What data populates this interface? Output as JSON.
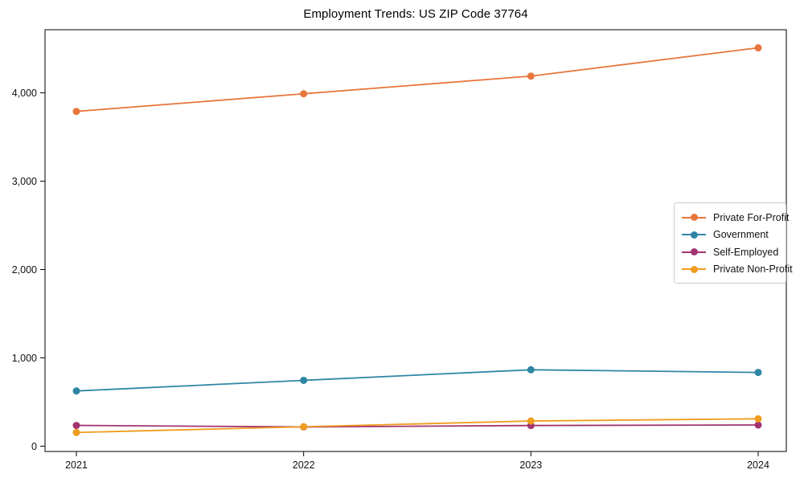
{
  "chart_data": {
    "type": "line",
    "title": "Employment Trends: US ZIP Code 37764",
    "xlabel": "",
    "ylabel": "",
    "x": [
      2021,
      2022,
      2023,
      2024
    ],
    "x_tick_labels": [
      "2021",
      "2022",
      "2023",
      "2024"
    ],
    "series": [
      {
        "name": "Private For-Profit",
        "color": "#E8763C",
        "values": [
          3790,
          3990,
          4190,
          4510
        ]
      },
      {
        "name": "Government",
        "color": "#2F86A3",
        "values": [
          625,
          745,
          865,
          835
        ]
      },
      {
        "name": "Self-Employed",
        "color": "#A23571",
        "values": [
          235,
          218,
          234,
          240
        ]
      },
      {
        "name": "Private Non-Profit",
        "color": "#F09C1E",
        "values": [
          155,
          220,
          285,
          310
        ]
      }
    ],
    "yticks": {
      "values": [
        0,
        1000,
        2000,
        3000,
        4000
      ],
      "labels": [
        "0",
        "1,000",
        "2,000",
        "3,000",
        "4,000"
      ]
    },
    "ylim": [
      -60,
      4715
    ],
    "grid": false,
    "legend_position": "center-right-inside",
    "marker": "circle",
    "axis_color": "#000000"
  }
}
